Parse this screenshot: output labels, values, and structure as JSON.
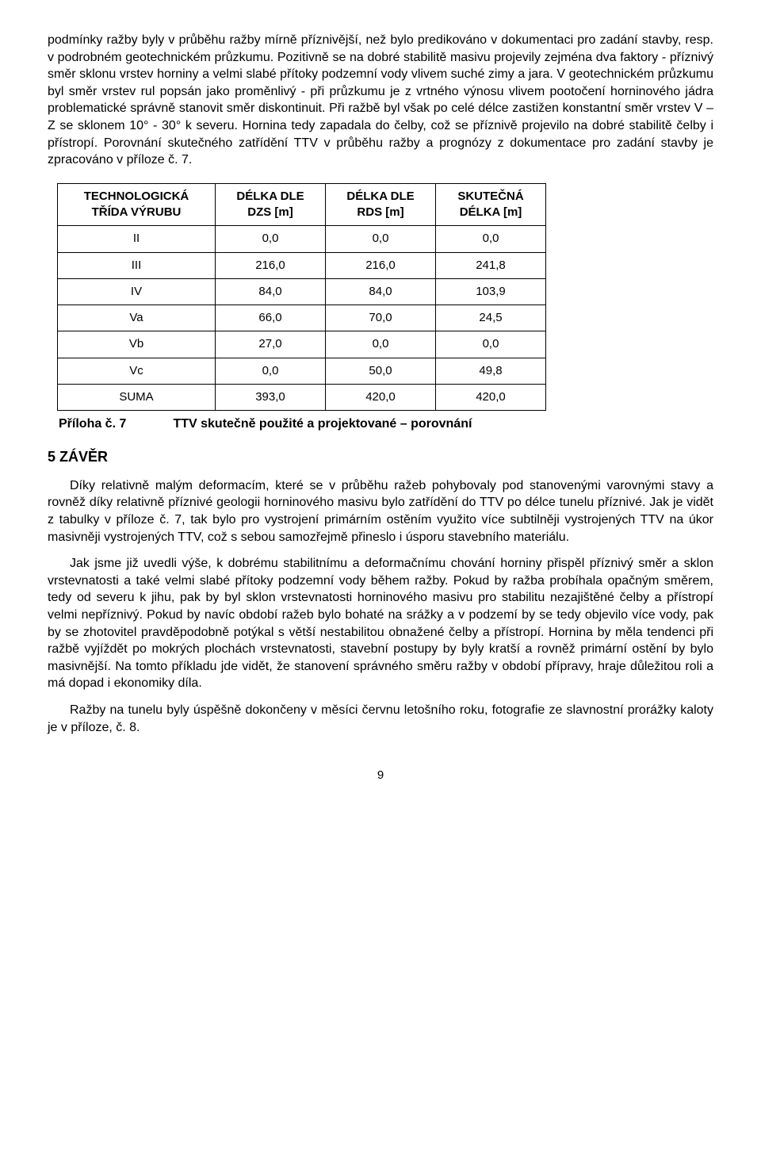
{
  "para1": "podmínky ražby byly v průběhu ražby mírně příznivější, než bylo predikováno v dokumentaci pro zadání stavby, resp. v podrobném geotechnickém průzkumu. Pozitivně se na dobré stabilitě masivu projevily zejména dva faktory - příznivý směr sklonu vrstev horniny a velmi slabé přítoky podzemní vody vlivem suché zimy a jara. V geotechnickém průzkumu byl směr vrstev rul popsán jako proměnlivý - při průzkumu je z vrtného výnosu vlivem pootočení horninového jádra problematické správně stanovit směr diskontinuit. Při ražbě byl však po celé délce zastižen konstantní směr vrstev V – Z se sklonem 10° - 30° k severu. Hornina tedy zapadala do čelby, což se příznivě projevilo na dobré stabilitě čelby i přístropí. Porovnání skutečného zatřídění TTV v průběhu ražby a prognózy z dokumentace pro zadání stavby je zpracováno v příloze č. 7.",
  "table": {
    "headers": [
      "TECHNOLOGICKÁ TŘÍDA VÝRUBU",
      "DÉLKA DLE DZS [m]",
      "DÉLKA DLE RDS [m]",
      "SKUTEČNÁ DÉLKA [m]"
    ],
    "rows": [
      [
        "II",
        "0,0",
        "0,0",
        "0,0"
      ],
      [
        "III",
        "216,0",
        "216,0",
        "241,8"
      ],
      [
        "IV",
        "84,0",
        "84,0",
        "103,9"
      ],
      [
        "Va",
        "66,0",
        "70,0",
        "24,5"
      ],
      [
        "Vb",
        "27,0",
        "0,0",
        "0,0"
      ],
      [
        "Vc",
        "0,0",
        "50,0",
        "49,8"
      ],
      [
        "SUMA",
        "393,0",
        "420,0",
        "420,0"
      ]
    ]
  },
  "caption": {
    "label": "Příloha č. 7",
    "text": "TTV skutečně použité a projektované – porovnání"
  },
  "section": "5  ZÁVĚR",
  "para2": "Díky relativně malým deformacím, které se v průběhu ražeb pohybovaly pod stanovenými varovnými stavy a rovněž díky relativně příznivé geologii horninového masivu bylo zatřídění do TTV po délce tunelu příznivé. Jak je vidět z tabulky v příloze č. 7, tak bylo pro vystrojení primárním ostěním využito více subtilněji vystrojených TTV na úkor masivněji vystrojených TTV, což s sebou samozřejmě přineslo i úsporu stavebního materiálu.",
  "para3": "Jak jsme již uvedli výše, k dobrému stabilitnímu a deformačnímu chování horniny přispěl příznivý směr a sklon vrstevnatosti a také velmi slabé přítoky podzemní vody během ražby. Pokud by ražba probíhala opačným směrem, tedy od severu k jihu, pak by byl sklon vrstevnatosti horninového masivu pro stabilitu nezajištěné čelby a přístropí velmi nepříznivý.  Pokud by navíc období ražeb bylo bohaté na srážky a v podzemí by se tedy objevilo více vody, pak by se zhotovitel pravděpodobně potýkal s větší nestabilitou obnažené čelby a přístropí. Hornina by měla tendenci při ražbě vyjíždět po mokrých plochách vrstevnatosti, stavební postupy by byly kratší a rovněž primární ostění by bylo masivnější. Na tomto příkladu jde vidět, že stanovení správného směru ražby v období přípravy, hraje důležitou roli a má dopad i ekonomiky díla.",
  "para4": "Ražby na tunelu byly úspěšně dokončeny v měsíci červnu letošního roku, fotografie ze slavnostní prorážky kaloty je v příloze, č. 8.",
  "pagenum": "9"
}
